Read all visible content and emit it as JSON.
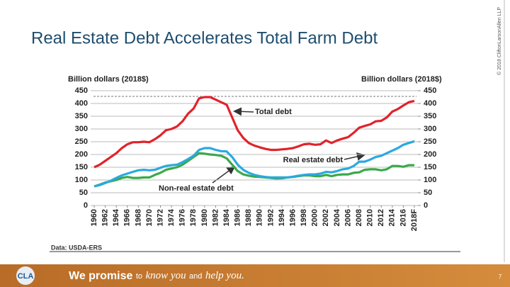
{
  "slide": {
    "copyright": "© 2018 CliftonLarsonAllen LLP",
    "footer": [
      "We promise",
      "to",
      "know you",
      "and",
      "help you."
    ],
    "page_number": "7"
  },
  "chart_data": {
    "type": "line",
    "title": "Real Estate Debt Accelerates Total Farm Debt",
    "ylabel": "Billion dollars (2018$)",
    "y2label": "Billion dollars (2018$)",
    "source": "Data: USDA-ERS",
    "x": [
      1960,
      1961,
      1962,
      1963,
      1964,
      1965,
      1966,
      1967,
      1968,
      1969,
      1970,
      1971,
      1972,
      1973,
      1974,
      1975,
      1976,
      1977,
      1978,
      1979,
      1980,
      1981,
      1982,
      1983,
      1984,
      1985,
      1986,
      1987,
      1988,
      1989,
      1990,
      1991,
      1992,
      1993,
      1994,
      1995,
      1996,
      1997,
      1998,
      1999,
      2000,
      2001,
      2002,
      2003,
      2004,
      2005,
      2006,
      2007,
      2008,
      2009,
      2010,
      2011,
      2012,
      2013,
      2014,
      2015,
      2016,
      2017,
      2018
    ],
    "xlim": [
      1960,
      2018
    ],
    "xticks": [
      1960,
      1962,
      1964,
      1966,
      1968,
      1970,
      1972,
      1974,
      1976,
      1978,
      1980,
      1982,
      1984,
      1986,
      1988,
      1990,
      1992,
      1994,
      1996,
      1998,
      2000,
      2002,
      2004,
      2006,
      2008,
      2010,
      2012,
      2014,
      2016,
      {
        "value": 2018,
        "label": "2018F"
      }
    ],
    "ylim": [
      0,
      450
    ],
    "yticks": [
      0,
      50,
      100,
      150,
      200,
      250,
      300,
      350,
      400,
      450
    ],
    "y2lim": [
      0,
      450
    ],
    "y2ticks": [
      0,
      50,
      100,
      150,
      200,
      250,
      300,
      350,
      400,
      450
    ],
    "grid": true,
    "annotations": [
      "Total debt",
      "Real estate debt",
      "Non-real estate debt"
    ],
    "series": [
      {
        "name": "Total debt",
        "color": "#e0232b",
        "values": [
          150,
          160,
          175,
          190,
          205,
          225,
          240,
          248,
          248,
          250,
          248,
          260,
          275,
          295,
          300,
          310,
          330,
          360,
          380,
          420,
          425,
          425,
          415,
          405,
          395,
          345,
          295,
          265,
          245,
          235,
          228,
          222,
          218,
          218,
          220,
          222,
          225,
          232,
          240,
          242,
          238,
          240,
          255,
          245,
          255,
          262,
          268,
          285,
          305,
          312,
          318,
          330,
          332,
          345,
          368,
          378,
          392,
          405,
          410
        ]
      },
      {
        "name": "Real estate debt",
        "color": "#2aa9df",
        "values": [
          75,
          80,
          88,
          97,
          108,
          118,
          125,
          132,
          138,
          140,
          138,
          140,
          148,
          155,
          158,
          160,
          170,
          182,
          195,
          218,
          225,
          225,
          218,
          213,
          212,
          190,
          160,
          140,
          128,
          120,
          115,
          112,
          110,
          110,
          110,
          110,
          113,
          117,
          120,
          122,
          122,
          125,
          132,
          130,
          135,
          142,
          145,
          155,
          172,
          172,
          180,
          190,
          195,
          205,
          215,
          225,
          238,
          245,
          252
        ]
      },
      {
        "name": "Non-real estate debt",
        "color": "#3aa94a",
        "values": [
          75,
          82,
          90,
          95,
          100,
          108,
          112,
          108,
          108,
          110,
          110,
          120,
          128,
          140,
          145,
          150,
          160,
          175,
          190,
          205,
          203,
          200,
          198,
          195,
          185,
          160,
          135,
          122,
          117,
          113,
          112,
          110,
          108,
          106,
          107,
          110,
          112,
          115,
          118,
          118,
          115,
          115,
          120,
          115,
          120,
          122,
          122,
          128,
          130,
          140,
          142,
          142,
          138,
          142,
          155,
          155,
          152,
          158,
          158
        ]
      }
    ]
  }
}
